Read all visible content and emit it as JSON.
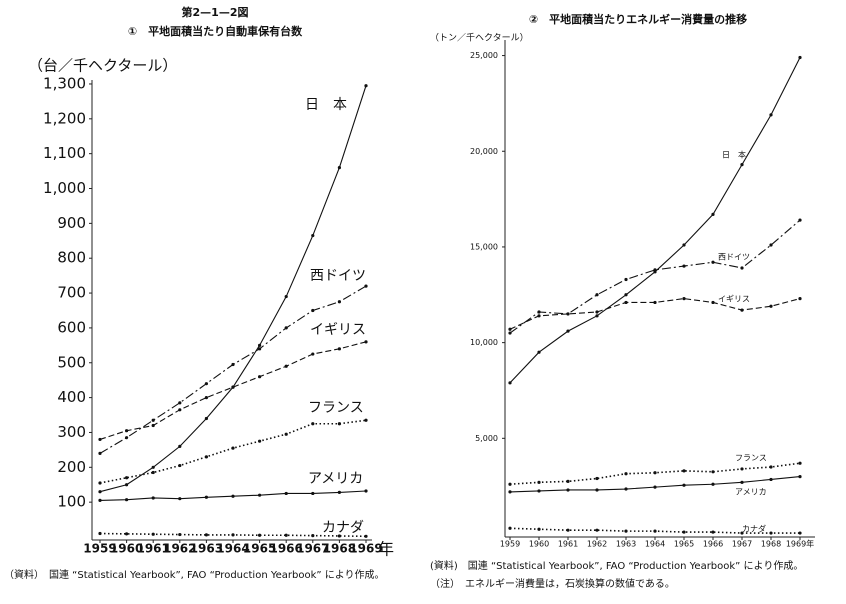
{
  "header": "第2—1—2図",
  "chart_data": [
    {
      "type": "line",
      "title": "①　平地面積当たり自動車保有台数",
      "y_unit": "（台／千ヘクタール）",
      "x_unit": "年",
      "categories": [
        "1959",
        "1960",
        "1961",
        "1962",
        "1963",
        "1964",
        "1965",
        "1966",
        "1967",
        "1968",
        "1969"
      ],
      "ylim": [
        0,
        1320
      ],
      "yticks": [
        100,
        200,
        300,
        400,
        500,
        600,
        700,
        800,
        900,
        {
          "value": 1000,
          "label": "1,000"
        },
        {
          "value": 1100,
          "label": "1,100"
        },
        {
          "value": 1200,
          "label": "1,200"
        },
        {
          "value": 1300,
          "label": "1,300"
        }
      ],
      "series": [
        {
          "name": "日　本",
          "color": "#111",
          "dash": "solid",
          "values": [
            130,
            150,
            200,
            260,
            340,
            430,
            550,
            690,
            865,
            1060,
            1295
          ]
        },
        {
          "name": "西ドイツ",
          "color": "#111",
          "dash": "dashdot",
          "values": [
            240,
            285,
            335,
            385,
            440,
            495,
            540,
            600,
            650,
            675,
            720
          ]
        },
        {
          "name": "イギリス",
          "color": "#111",
          "dash": "dashed",
          "values": [
            280,
            305,
            320,
            365,
            400,
            430,
            460,
            490,
            525,
            540,
            560
          ]
        },
        {
          "name": "フランス",
          "color": "#111",
          "dash": "dotted",
          "values": [
            155,
            170,
            185,
            205,
            230,
            255,
            275,
            295,
            325,
            325,
            335
          ]
        },
        {
          "name": "アメリカ",
          "color": "#111",
          "dash": "solid",
          "values": [
            105,
            107,
            112,
            110,
            114,
            117,
            120,
            125,
            125,
            128,
            132
          ]
        },
        {
          "name": "カナダ",
          "color": "#111",
          "dash": "dotted",
          "values": [
            10,
            9,
            8,
            7,
            6,
            6,
            5,
            5,
            4,
            3,
            2
          ]
        }
      ]
    },
    {
      "type": "line",
      "title": "②　平地面積当たりエネルギー消費量の推移",
      "y_unit": "（トン／千ヘクタール）",
      "categories": [
        "1959",
        "1960",
        "1961",
        "1962",
        "1963",
        "1964",
        "1965",
        "1966",
        "1967",
        "1968",
        "1969年"
      ],
      "ylim": [
        0,
        25500
      ],
      "yticks": [
        {
          "value": 5000,
          "label": "5,000"
        },
        {
          "value": 10000,
          "label": "10,000"
        },
        {
          "value": 15000,
          "label": "15,000"
        },
        {
          "value": 20000,
          "label": "20,000"
        },
        {
          "value": 25000,
          "label": "25,000"
        }
      ],
      "series": [
        {
          "name": "日　本",
          "color": "#111",
          "dash": "solid",
          "values": [
            7900,
            9500,
            10600,
            11400,
            12500,
            13700,
            15100,
            16700,
            19300,
            21900,
            24900
          ]
        },
        {
          "name": "西ドイツ",
          "color": "#111",
          "dash": "dashdot",
          "values": [
            10500,
            11600,
            11500,
            12500,
            13300,
            13800,
            14000,
            14200,
            13900,
            15100,
            16400
          ]
        },
        {
          "name": "イギリス",
          "color": "#111",
          "dash": "dashed",
          "values": [
            10700,
            11400,
            11500,
            11600,
            12100,
            12100,
            12300,
            12100,
            11700,
            11900,
            12300
          ]
        },
        {
          "name": "フランス",
          "color": "#111",
          "dash": "dotted",
          "values": [
            2600,
            2700,
            2750,
            2900,
            3150,
            3200,
            3300,
            3250,
            3400,
            3500,
            3700
          ]
        },
        {
          "name": "アメリカ",
          "color": "#111",
          "dash": "solid",
          "values": [
            2200,
            2250,
            2300,
            2300,
            2350,
            2450,
            2550,
            2600,
            2700,
            2850,
            3000
          ]
        },
        {
          "name": "カナダ",
          "color": "#111",
          "dash": "dotted",
          "values": [
            300,
            250,
            200,
            200,
            150,
            150,
            100,
            100,
            50,
            50,
            50
          ]
        }
      ]
    }
  ],
  "footer": {
    "source1": "（資料）　国連 “Statistical Yearbook”, FAO “Production Yearbook” により作成。",
    "source2": "(資料)　国連 “Statistical Yearbook”, FAO “Production Yearbook” により作成。",
    "note": "（注）　エネルギー消費量は，石炭換算の数値である。"
  }
}
